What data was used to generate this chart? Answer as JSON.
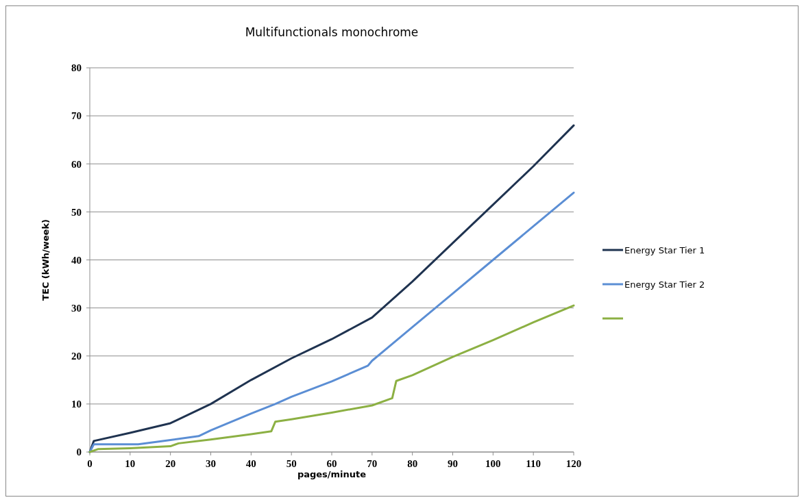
{
  "chart_data": {
    "type": "line",
    "title": "Multifunctionals monochrome",
    "xlabel": "pages/minute",
    "ylabel": "TEC (kWh/week)",
    "xlim": [
      0,
      120
    ],
    "xticks": [
      0,
      10,
      20,
      30,
      40,
      50,
      60,
      70,
      80,
      90,
      100,
      110,
      120
    ],
    "ylim": [
      0,
      80
    ],
    "yticks": [
      0,
      10,
      20,
      30,
      40,
      50,
      60,
      70,
      80
    ],
    "grid": "y",
    "legend": "right",
    "marker": "none",
    "line_style": "solid",
    "series": [
      {
        "name": "Energy Star Tier 1",
        "color": "#1f3350",
        "x": [
          0,
          1,
          10,
          20,
          21,
          30,
          40,
          50,
          60,
          70,
          80,
          90,
          100,
          110,
          120
        ],
        "values": [
          0,
          2.3,
          4,
          6,
          6.4,
          10,
          15,
          19.5,
          23.5,
          28,
          35.5,
          43.5,
          51.5,
          59.5,
          68
        ]
      },
      {
        "name": "Energy Star Tier 2",
        "color": "#5b8ed4",
        "x": [
          0,
          1,
          12,
          20,
          27,
          30,
          40,
          46,
          50,
          60,
          69,
          70,
          80,
          90,
          100,
          110,
          120
        ],
        "values": [
          0,
          1.6,
          1.6,
          2.5,
          3.3,
          4.5,
          8,
          10,
          11.5,
          14.7,
          18,
          19,
          26,
          33,
          40,
          47,
          54
        ]
      },
      {
        "color": "#8cb043",
        "x": [
          0,
          2,
          10,
          20,
          22,
          30,
          40,
          45,
          46,
          50,
          60,
          70,
          75,
          76,
          80,
          90,
          100,
          110,
          120
        ],
        "values": [
          0,
          0.6,
          0.8,
          1.2,
          1.8,
          2.6,
          3.7,
          4.3,
          6.3,
          6.8,
          8.2,
          9.7,
          11.2,
          14.8,
          16,
          19.8,
          23.3,
          27,
          30.5
        ]
      }
    ]
  }
}
